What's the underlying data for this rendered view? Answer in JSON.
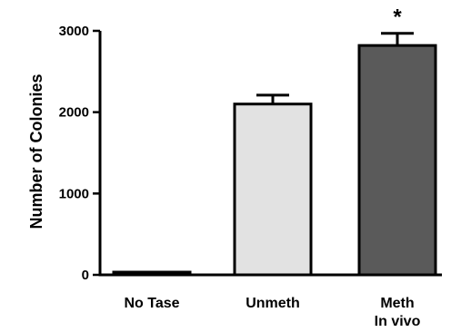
{
  "chart_data": {
    "type": "bar",
    "title": "",
    "xlabel": "",
    "ylabel": "Number of Colonies",
    "ylim": [
      0,
      3000
    ],
    "yticks": [
      0,
      1000,
      2000,
      3000
    ],
    "ytick_labels": [
      "0",
      "1000",
      "2000",
      "3000"
    ],
    "categories": [
      {
        "lines": [
          "No Tase"
        ]
      },
      {
        "lines": [
          "Unmeth"
        ]
      },
      {
        "lines": [
          "Meth",
          "In vivo"
        ]
      }
    ],
    "values": [
      30,
      2100,
      2820
    ],
    "errors": [
      0,
      110,
      150
    ],
    "colors": [
      "#111111",
      "#e2e2e2",
      "#5a5a5a"
    ],
    "annotations": [
      "",
      "",
      "*"
    ],
    "grid": false,
    "legend": "none"
  }
}
